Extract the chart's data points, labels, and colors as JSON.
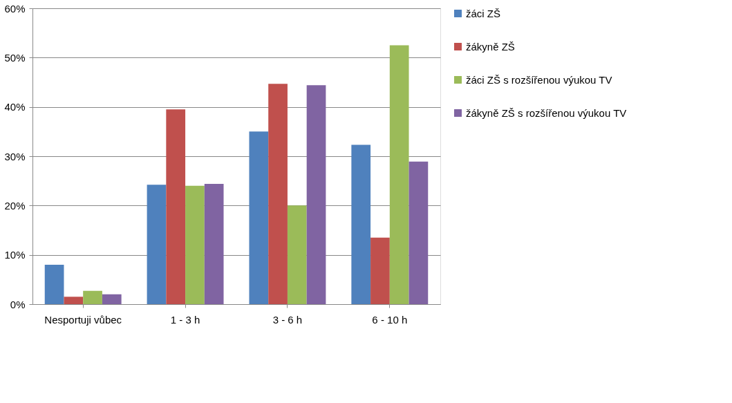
{
  "chart_data": {
    "type": "bar",
    "categories": [
      "Nesportuji vůbec",
      "1 - 3 h",
      "3 - 6 h",
      "6 - 10 h"
    ],
    "series": [
      {
        "name": "žáci ZŠ",
        "color": "#4f81bd",
        "values": [
          8.0,
          24.2,
          35.0,
          32.3
        ]
      },
      {
        "name": "žákyně ZŠ",
        "color": "#c0504d",
        "values": [
          1.5,
          39.5,
          44.7,
          13.5
        ]
      },
      {
        "name": "žáci ZŠ s rozšířenou výukou TV",
        "color": "#9bbb59",
        "values": [
          2.7,
          24.0,
          20.0,
          52.5
        ]
      },
      {
        "name": "žákyně ZŠ s rozšířenou výukou TV",
        "color": "#8064a2",
        "values": [
          2.0,
          24.4,
          44.4,
          28.9
        ]
      }
    ],
    "ylim": [
      0,
      60
    ],
    "yticks": [
      {
        "value": 0,
        "label": "0%"
      },
      {
        "value": 10,
        "label": "10%"
      },
      {
        "value": 20,
        "label": "20%"
      },
      {
        "value": 30,
        "label": "30%"
      },
      {
        "value": 40,
        "label": "40%"
      },
      {
        "value": 50,
        "label": "50%"
      },
      {
        "value": 60,
        "label": "60%"
      }
    ],
    "grid": "y",
    "legend": "right"
  }
}
